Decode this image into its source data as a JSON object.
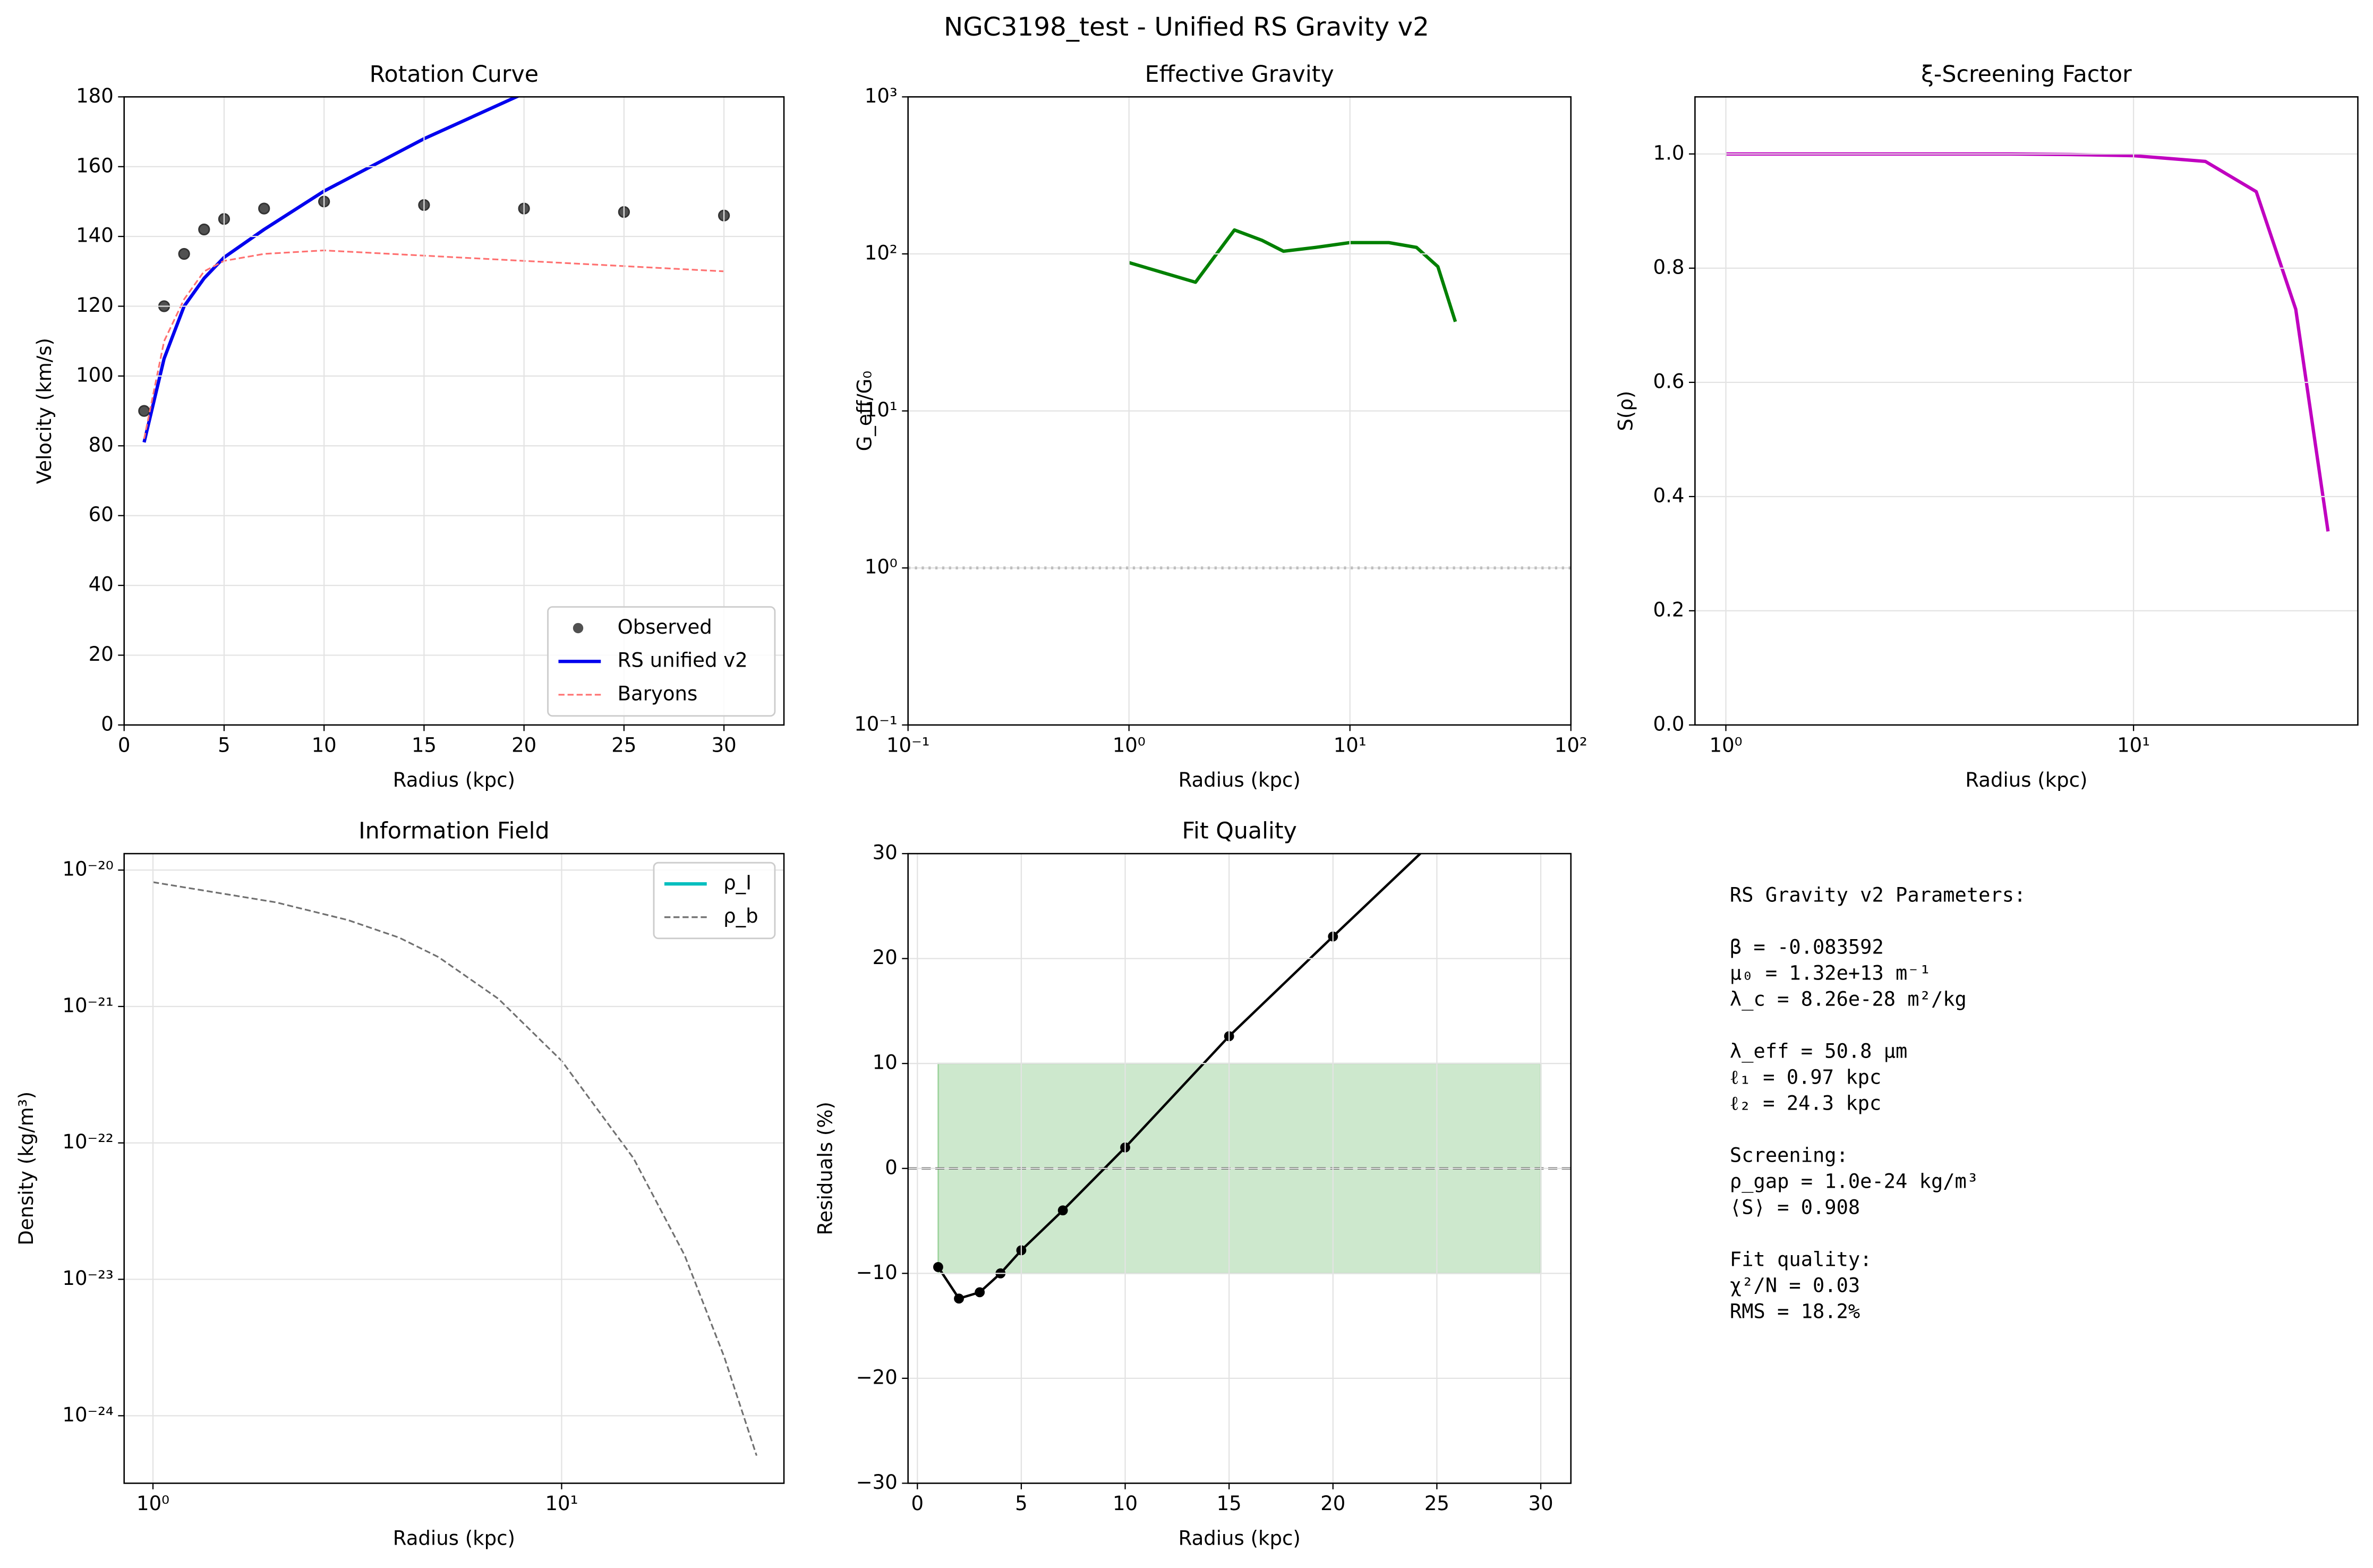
{
  "title": "NGC3198_test - Unified RS Gravity v2",
  "chart_data": [
    {
      "type": "line",
      "title": "Rotation Curve",
      "xlabel": "Radius (kpc)",
      "ylabel": "Velocity (km/s)",
      "xlim": [
        0,
        33
      ],
      "ylim": [
        0,
        180
      ],
      "xticks": [
        0,
        5,
        10,
        15,
        20,
        25,
        30
      ],
      "yticks": [
        0,
        20,
        40,
        60,
        80,
        100,
        120,
        140,
        160,
        180
      ],
      "grid": true,
      "legend": "lower right",
      "series": [
        {
          "name": "Observed",
          "color": "#333333",
          "style": "markers",
          "x": [
            1,
            2,
            3,
            4,
            5,
            7,
            10,
            15,
            20,
            25,
            30
          ],
          "values": [
            90,
            120,
            135,
            142,
            145,
            148,
            150,
            149,
            148,
            147,
            146
          ]
        },
        {
          "name": "RS unified v2",
          "color": "#0000ee",
          "style": "line",
          "x": [
            1,
            2,
            3,
            4,
            5,
            7,
            10,
            15,
            20
          ],
          "values": [
            81,
            105,
            120,
            128,
            134,
            142,
            153,
            168,
            181
          ]
        },
        {
          "name": "Baryons",
          "color": "#ff7070",
          "style": "dashed",
          "x": [
            1,
            2,
            3,
            4,
            5,
            7,
            10,
            15,
            20,
            25,
            30
          ],
          "values": [
            82,
            110,
            122,
            130,
            133,
            135,
            136,
            134.5,
            133,
            131.5,
            130
          ]
        }
      ]
    },
    {
      "type": "line",
      "title": "Effective Gravity",
      "xlabel": "Radius (kpc)",
      "ylabel": "G_eff/G₀",
      "xscale": "log",
      "yscale": "log",
      "xlim": [
        0.1,
        100
      ],
      "ylim": [
        0.1,
        1000
      ],
      "xticks": [
        {
          "value": 0.1,
          "label": "10⁻¹"
        },
        {
          "value": 1,
          "label": "10⁰"
        },
        {
          "value": 10,
          "label": "10¹"
        },
        {
          "value": 100,
          "label": "10²"
        }
      ],
      "yticks": [
        {
          "value": 0.1,
          "label": "10⁻¹"
        },
        {
          "value": 1,
          "label": "10⁰"
        },
        {
          "value": 10,
          "label": "10¹"
        },
        {
          "value": 100,
          "label": "10²"
        },
        {
          "value": 1000,
          "label": "10³"
        }
      ],
      "grid": true,
      "reference_line": 1,
      "series": [
        {
          "color": "#008000",
          "style": "line",
          "x": [
            1,
            2,
            3,
            4,
            5,
            7,
            10,
            15,
            20,
            25,
            30
          ],
          "values": [
            88,
            66,
            142,
            122,
            104,
            110,
            118,
            118,
            110,
            83,
            37
          ]
        }
      ]
    },
    {
      "type": "line",
      "title": "ξ-Screening Factor",
      "xlabel": "Radius (kpc)",
      "ylabel": "S(ρ)",
      "xscale": "log",
      "xlim": [
        0.84,
        35.5
      ],
      "ylim": [
        0,
        1.1
      ],
      "xticks": [
        {
          "value": 1,
          "label": "10⁰"
        },
        {
          "value": 10,
          "label": "10¹"
        }
      ],
      "yticks": [
        {
          "value": 0,
          "label": "0.0"
        },
        0.2,
        0.4,
        0.6,
        0.8,
        {
          "value": 1,
          "label": "1.0"
        }
      ],
      "grid": true,
      "series": [
        {
          "color": "#c000c0",
          "style": "line",
          "x": [
            1,
            2,
            3,
            4,
            5,
            7,
            10,
            15,
            20,
            25,
            30
          ],
          "values": [
            1.0,
            1.0,
            1.0,
            1.0,
            1.0,
            0.999,
            0.997,
            0.987,
            0.934,
            0.728,
            0.339
          ]
        }
      ]
    },
    {
      "type": "line",
      "title": "Information Field",
      "xlabel": "Radius (kpc)",
      "ylabel": "Density (kg/m³)",
      "xscale": "log",
      "yscale": "log",
      "xlim": [
        0.85,
        35
      ],
      "ylim": [
        3.2e-25,
        1.32e-20
      ],
      "xticks": [
        {
          "value": 1,
          "label": "10⁰"
        },
        {
          "value": 10,
          "label": "10¹"
        }
      ],
      "yticks": [
        {
          "value": 1e-24,
          "label": "10⁻²⁴"
        },
        {
          "value": 1e-23,
          "label": "10⁻²³"
        },
        {
          "value": 1e-22,
          "label": "10⁻²²"
        },
        {
          "value": 1e-21,
          "label": "10⁻²¹"
        },
        {
          "value": 1e-20,
          "label": "10⁻²⁰"
        }
      ],
      "grid": true,
      "legend": "upper right",
      "series": [
        {
          "name": "ρ_I",
          "color": "#00bfbf",
          "style": "line",
          "x": [
            1,
            2,
            3,
            4,
            5,
            7,
            10,
            15,
            20,
            25,
            30
          ],
          "values": [
            null,
            null,
            null,
            null,
            null,
            null,
            null,
            null,
            null,
            null,
            null
          ]
        },
        {
          "name": "ρ_b",
          "color": "#707070",
          "style": "dashed",
          "x": [
            1,
            2,
            3,
            4,
            5,
            7,
            10,
            15,
            20,
            25,
            30
          ],
          "values": [
            8.15e-21,
            5.8e-21,
            4.3e-21,
            3.2e-21,
            2.3e-21,
            1.14e-21,
            4e-22,
            7.7e-23,
            1.5e-23,
            2.7e-24,
            5.1e-25
          ]
        }
      ]
    },
    {
      "type": "line",
      "title": "Fit Quality",
      "xlabel": "Radius (kpc)",
      "ylabel": "Residuals (%)",
      "xlim": [
        -0.45,
        31.45
      ],
      "ylim": [
        -30,
        30
      ],
      "xticks": [
        0,
        5,
        10,
        15,
        20,
        25,
        30
      ],
      "yticks": [
        {
          "value": -30,
          "label": "−30"
        },
        {
          "value": -20,
          "label": "−20"
        },
        {
          "value": -10,
          "label": "−10"
        },
        0,
        10,
        20,
        30
      ],
      "grid": true,
      "reference_line": 0,
      "band": {
        "x": [
          1,
          30
        ],
        "y": [
          -10,
          10
        ],
        "color": "#2ca02c"
      },
      "series": [
        {
          "color": "#000000",
          "style": "line+markers",
          "x": [
            1,
            2,
            3,
            4,
            5,
            7,
            10,
            15,
            20,
            25
          ],
          "values": [
            -9.4,
            -12.4,
            -11.8,
            -10,
            -7.8,
            -4,
            2,
            12.6,
            22.1,
            31.5
          ]
        }
      ]
    }
  ],
  "parameters": {
    "title": "RS Gravity v2 Parameters:",
    "groups": [
      [
        "β = -0.083592",
        "μ₀ = 1.32e+13 m⁻¹",
        "λ_c = 8.26e-28 m²/kg"
      ],
      [
        "λ_eff = 50.8 μm",
        "ℓ₁ = 0.97 kpc",
        "ℓ₂ = 24.3 kpc"
      ],
      [
        "Screening:",
        "ρ_gap = 1.0e-24 kg/m³",
        "⟨S⟩ = 0.908"
      ],
      [
        "Fit quality:",
        "χ²/N = 0.03",
        "RMS = 18.2%"
      ]
    ]
  }
}
